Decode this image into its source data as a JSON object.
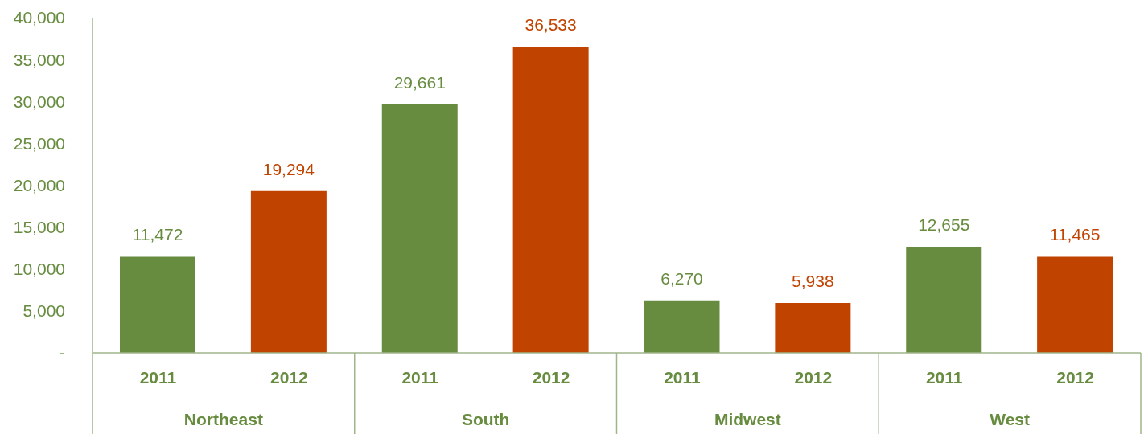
{
  "chart_data": {
    "type": "bar",
    "categories": [
      "2011",
      "2012",
      "2011",
      "2012",
      "2011",
      "2012",
      "2011",
      "2012"
    ],
    "values": [
      11472,
      19294,
      29661,
      36533,
      6270,
      5938,
      12655,
      11465
    ],
    "colors": [
      "#678c3f",
      "#c04300",
      "#678c3f",
      "#c04300",
      "#678c3f",
      "#c04300",
      "#678c3f",
      "#c04300"
    ],
    "value_labels": [
      "11,472",
      "19,294",
      "29,661",
      "36,533",
      "6,270",
      "5,938",
      "12,655",
      "11,465"
    ],
    "annotations": [
      "Northeast",
      "South",
      "Midwest",
      "West"
    ],
    "ylim": [
      0,
      40000
    ],
    "yticks": [
      {
        "value": 0,
        "label": "-"
      },
      {
        "value": 5000,
        "label": "5,000"
      },
      {
        "value": 10000,
        "label": "10,000"
      },
      {
        "value": 15000,
        "label": "15,000"
      },
      {
        "value": 20000,
        "label": "20,000"
      },
      {
        "value": 25000,
        "label": "25,000"
      },
      {
        "value": 30000,
        "label": "30,000"
      },
      {
        "value": 35000,
        "label": "35,000"
      },
      {
        "value": 40000,
        "label": "40,000"
      }
    ],
    "grid": false,
    "legend": false
  }
}
